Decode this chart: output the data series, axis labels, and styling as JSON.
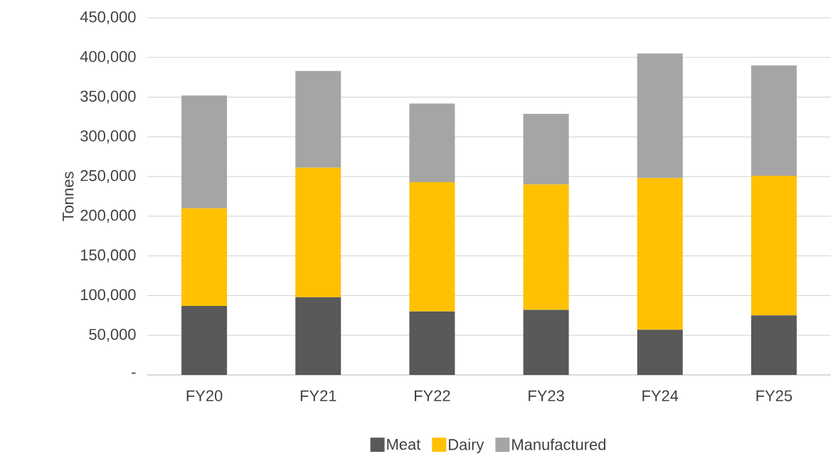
{
  "chart_data": {
    "type": "bar",
    "stacked": true,
    "ylabel": "Tonnes",
    "categories": [
      "FY20",
      "FY21",
      "FY22",
      "FY23",
      "FY24",
      "FY25"
    ],
    "series": [
      {
        "name": "Meat",
        "color": "#595959",
        "values": [
          87000,
          98000,
          80000,
          82000,
          57000,
          75000
        ]
      },
      {
        "name": "Dairy",
        "color": "#ffc000",
        "values": [
          123000,
          163000,
          163000,
          158000,
          191000,
          176000
        ]
      },
      {
        "name": "Manufactured",
        "color": "#a5a5a5",
        "values": [
          142000,
          122000,
          99000,
          89000,
          157000,
          139000
        ]
      }
    ],
    "ylim": [
      0,
      450000
    ],
    "yticks": [
      {
        "value": 0,
        "label": "-"
      },
      {
        "value": 50000,
        "label": "50,000"
      },
      {
        "value": 100000,
        "label": "100,000"
      },
      {
        "value": 150000,
        "label": "150,000"
      },
      {
        "value": 200000,
        "label": "200,000"
      },
      {
        "value": 250000,
        "label": "250,000"
      },
      {
        "value": 300000,
        "label": "300,000"
      },
      {
        "value": 350000,
        "label": "350,000"
      },
      {
        "value": 400000,
        "label": "400,000"
      },
      {
        "value": 450000,
        "label": "450,000"
      }
    ],
    "grid": "y",
    "legend": "bottom"
  }
}
